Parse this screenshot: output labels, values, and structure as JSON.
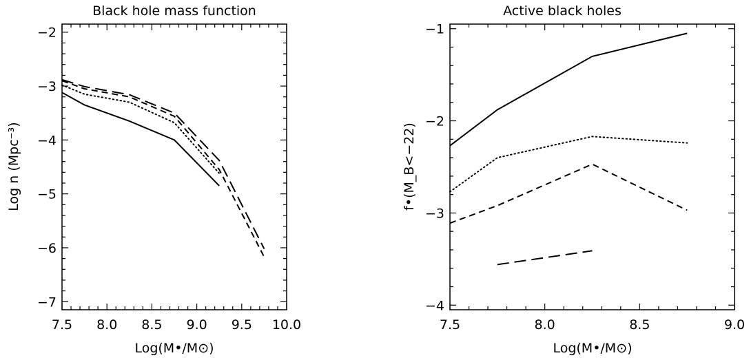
{
  "chart_data": [
    {
      "type": "line",
      "title": "Black hole mass function",
      "xlabel": "Log(M•/M⊙)",
      "ylabel": "Log n (Mpc⁻³)",
      "xlim": [
        7.5,
        10.0
      ],
      "ylim": [
        -7.15,
        -1.85
      ],
      "x_ticks": [
        7.5,
        8.0,
        8.5,
        9.0,
        9.5,
        10.0
      ],
      "x_tick_labels": [
        "7.5",
        "8.0",
        "8.5",
        "9.0",
        "9.5",
        "10.0"
      ],
      "y_ticks": [
        -7,
        -6,
        -5,
        -4,
        -3,
        -2
      ],
      "y_tick_labels": [
        "−7",
        "−6",
        "−5",
        "−4",
        "−3",
        "−2"
      ],
      "grid": false,
      "series": [
        {
          "linestyle": "solid",
          "x": [
            7.5,
            7.75,
            8.25,
            8.75,
            9.25
          ],
          "y": [
            -3.12,
            -3.35,
            -3.65,
            -4.0,
            -4.85
          ]
        },
        {
          "linestyle": "dotted",
          "x": [
            7.5,
            7.75,
            8.25,
            8.75,
            9.25
          ],
          "y": [
            -2.98,
            -3.15,
            -3.3,
            -3.68,
            -4.62
          ]
        },
        {
          "linestyle": "dashed",
          "x": [
            7.5,
            7.75,
            8.25,
            8.75,
            9.25,
            9.75
          ],
          "y": [
            -2.9,
            -3.05,
            -3.2,
            -3.56,
            -4.55,
            -6.17
          ]
        },
        {
          "linestyle": "long-dashed",
          "x": [
            7.5,
            7.75,
            8.25,
            8.75,
            9.25,
            9.75
          ],
          "y": [
            -2.88,
            -3.01,
            -3.16,
            -3.5,
            -4.38,
            -6.02
          ]
        }
      ]
    },
    {
      "type": "line",
      "title": "Active black holes",
      "xlabel": "Log(M•/M⊙)",
      "ylabel": "f•(M_B<−22)",
      "xlim": [
        7.5,
        9.0
      ],
      "ylim": [
        -4.05,
        -0.95
      ],
      "x_ticks": [
        7.5,
        8.0,
        8.5,
        9.0
      ],
      "x_tick_labels": [
        "7.5",
        "8.0",
        "8.5",
        "9.0"
      ],
      "y_ticks": [
        -4,
        -3,
        -2,
        -1
      ],
      "y_tick_labels": [
        "−4",
        "−3",
        "−2",
        "−1"
      ],
      "grid": false,
      "series": [
        {
          "linestyle": "solid",
          "x": [
            7.5,
            7.75,
            8.25,
            8.75
          ],
          "y": [
            -2.27,
            -1.88,
            -1.3,
            -1.05
          ]
        },
        {
          "linestyle": "dotted",
          "x": [
            7.5,
            7.75,
            8.25,
            8.75
          ],
          "y": [
            -2.77,
            -2.4,
            -2.17,
            -2.24
          ]
        },
        {
          "linestyle": "dashed",
          "x": [
            7.5,
            7.75,
            8.25,
            8.75
          ],
          "y": [
            -3.11,
            -2.92,
            -2.47,
            -2.97
          ]
        },
        {
          "linestyle": "long-dashed",
          "x": [
            7.75,
            8.25
          ],
          "y": [
            -3.56,
            -3.41
          ]
        }
      ]
    }
  ]
}
